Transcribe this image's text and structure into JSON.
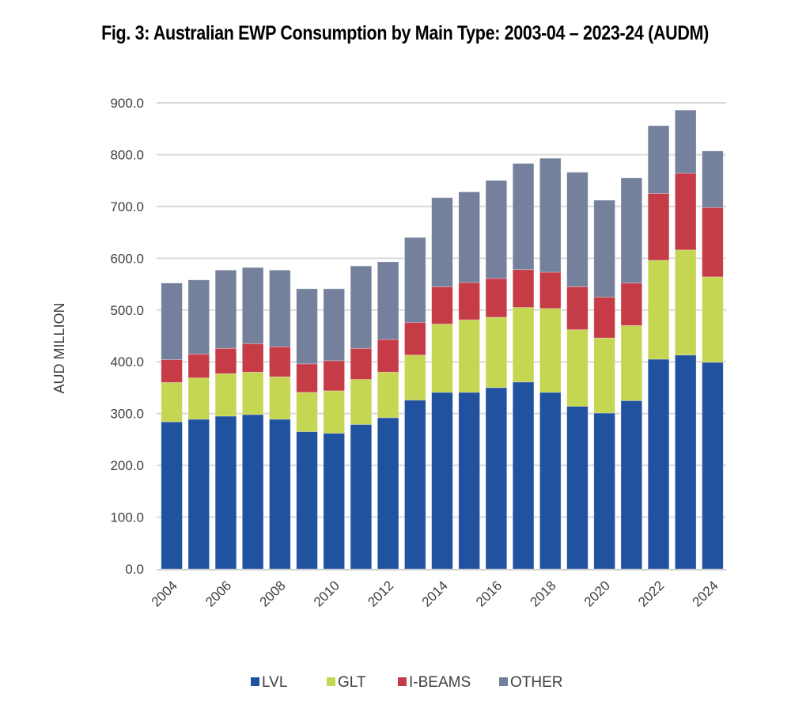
{
  "chart_data": {
    "type": "bar",
    "stacked": true,
    "title": "Fig. 3: Australian EWP Consumption by Main Type: 2003-04 – 2023-24 (AUDM)",
    "xlabel": "",
    "ylabel": "AUD MILLION",
    "ylim": [
      0,
      900
    ],
    "yticks": [
      "0.0",
      "100.0",
      "200.0",
      "300.0",
      "400.0",
      "500.0",
      "600.0",
      "700.0",
      "800.0",
      "900.0"
    ],
    "ytick_values": [
      0,
      100,
      200,
      300,
      400,
      500,
      600,
      700,
      800,
      900
    ],
    "grid": true,
    "legend_position": "bottom",
    "categories": [
      "2004",
      "2005",
      "2006",
      "2007",
      "2008",
      "2009",
      "2010",
      "2011",
      "2012",
      "2013",
      "2014",
      "2015",
      "2016",
      "2017",
      "2018",
      "2019",
      "2020",
      "2021",
      "2022",
      "2023",
      "2024"
    ],
    "xtick_labels_shown": [
      "2004",
      "2006",
      "2008",
      "2010",
      "2012",
      "2014",
      "2016",
      "2018",
      "2020",
      "2022",
      "2024"
    ],
    "series": [
      {
        "name": "LVL",
        "color": "#2152a0",
        "values": [
          284,
          289,
          295,
          298,
          289,
          265,
          262,
          279,
          292,
          326,
          341,
          341,
          350,
          361,
          341,
          314,
          301,
          325,
          405,
          413,
          399
        ]
      },
      {
        "name": "GLT",
        "color": "#c5d652",
        "values": [
          76,
          80,
          82,
          82,
          82,
          76,
          82,
          87,
          88,
          87,
          132,
          140,
          136,
          144,
          162,
          148,
          145,
          145,
          191,
          203,
          165
        ]
      },
      {
        "name": "I-BEAMS",
        "color": "#c63c46",
        "values": [
          44,
          46,
          49,
          55,
          58,
          55,
          58,
          60,
          63,
          63,
          72,
          72,
          75,
          73,
          70,
          83,
          79,
          82,
          129,
          148,
          134
        ]
      },
      {
        "name": "OTHER",
        "color": "#75819c",
        "values": [
          148,
          143,
          151,
          147,
          148,
          145,
          139,
          159,
          150,
          164,
          172,
          175,
          189,
          205,
          220,
          221,
          187,
          203,
          131,
          122,
          109
        ]
      }
    ]
  }
}
